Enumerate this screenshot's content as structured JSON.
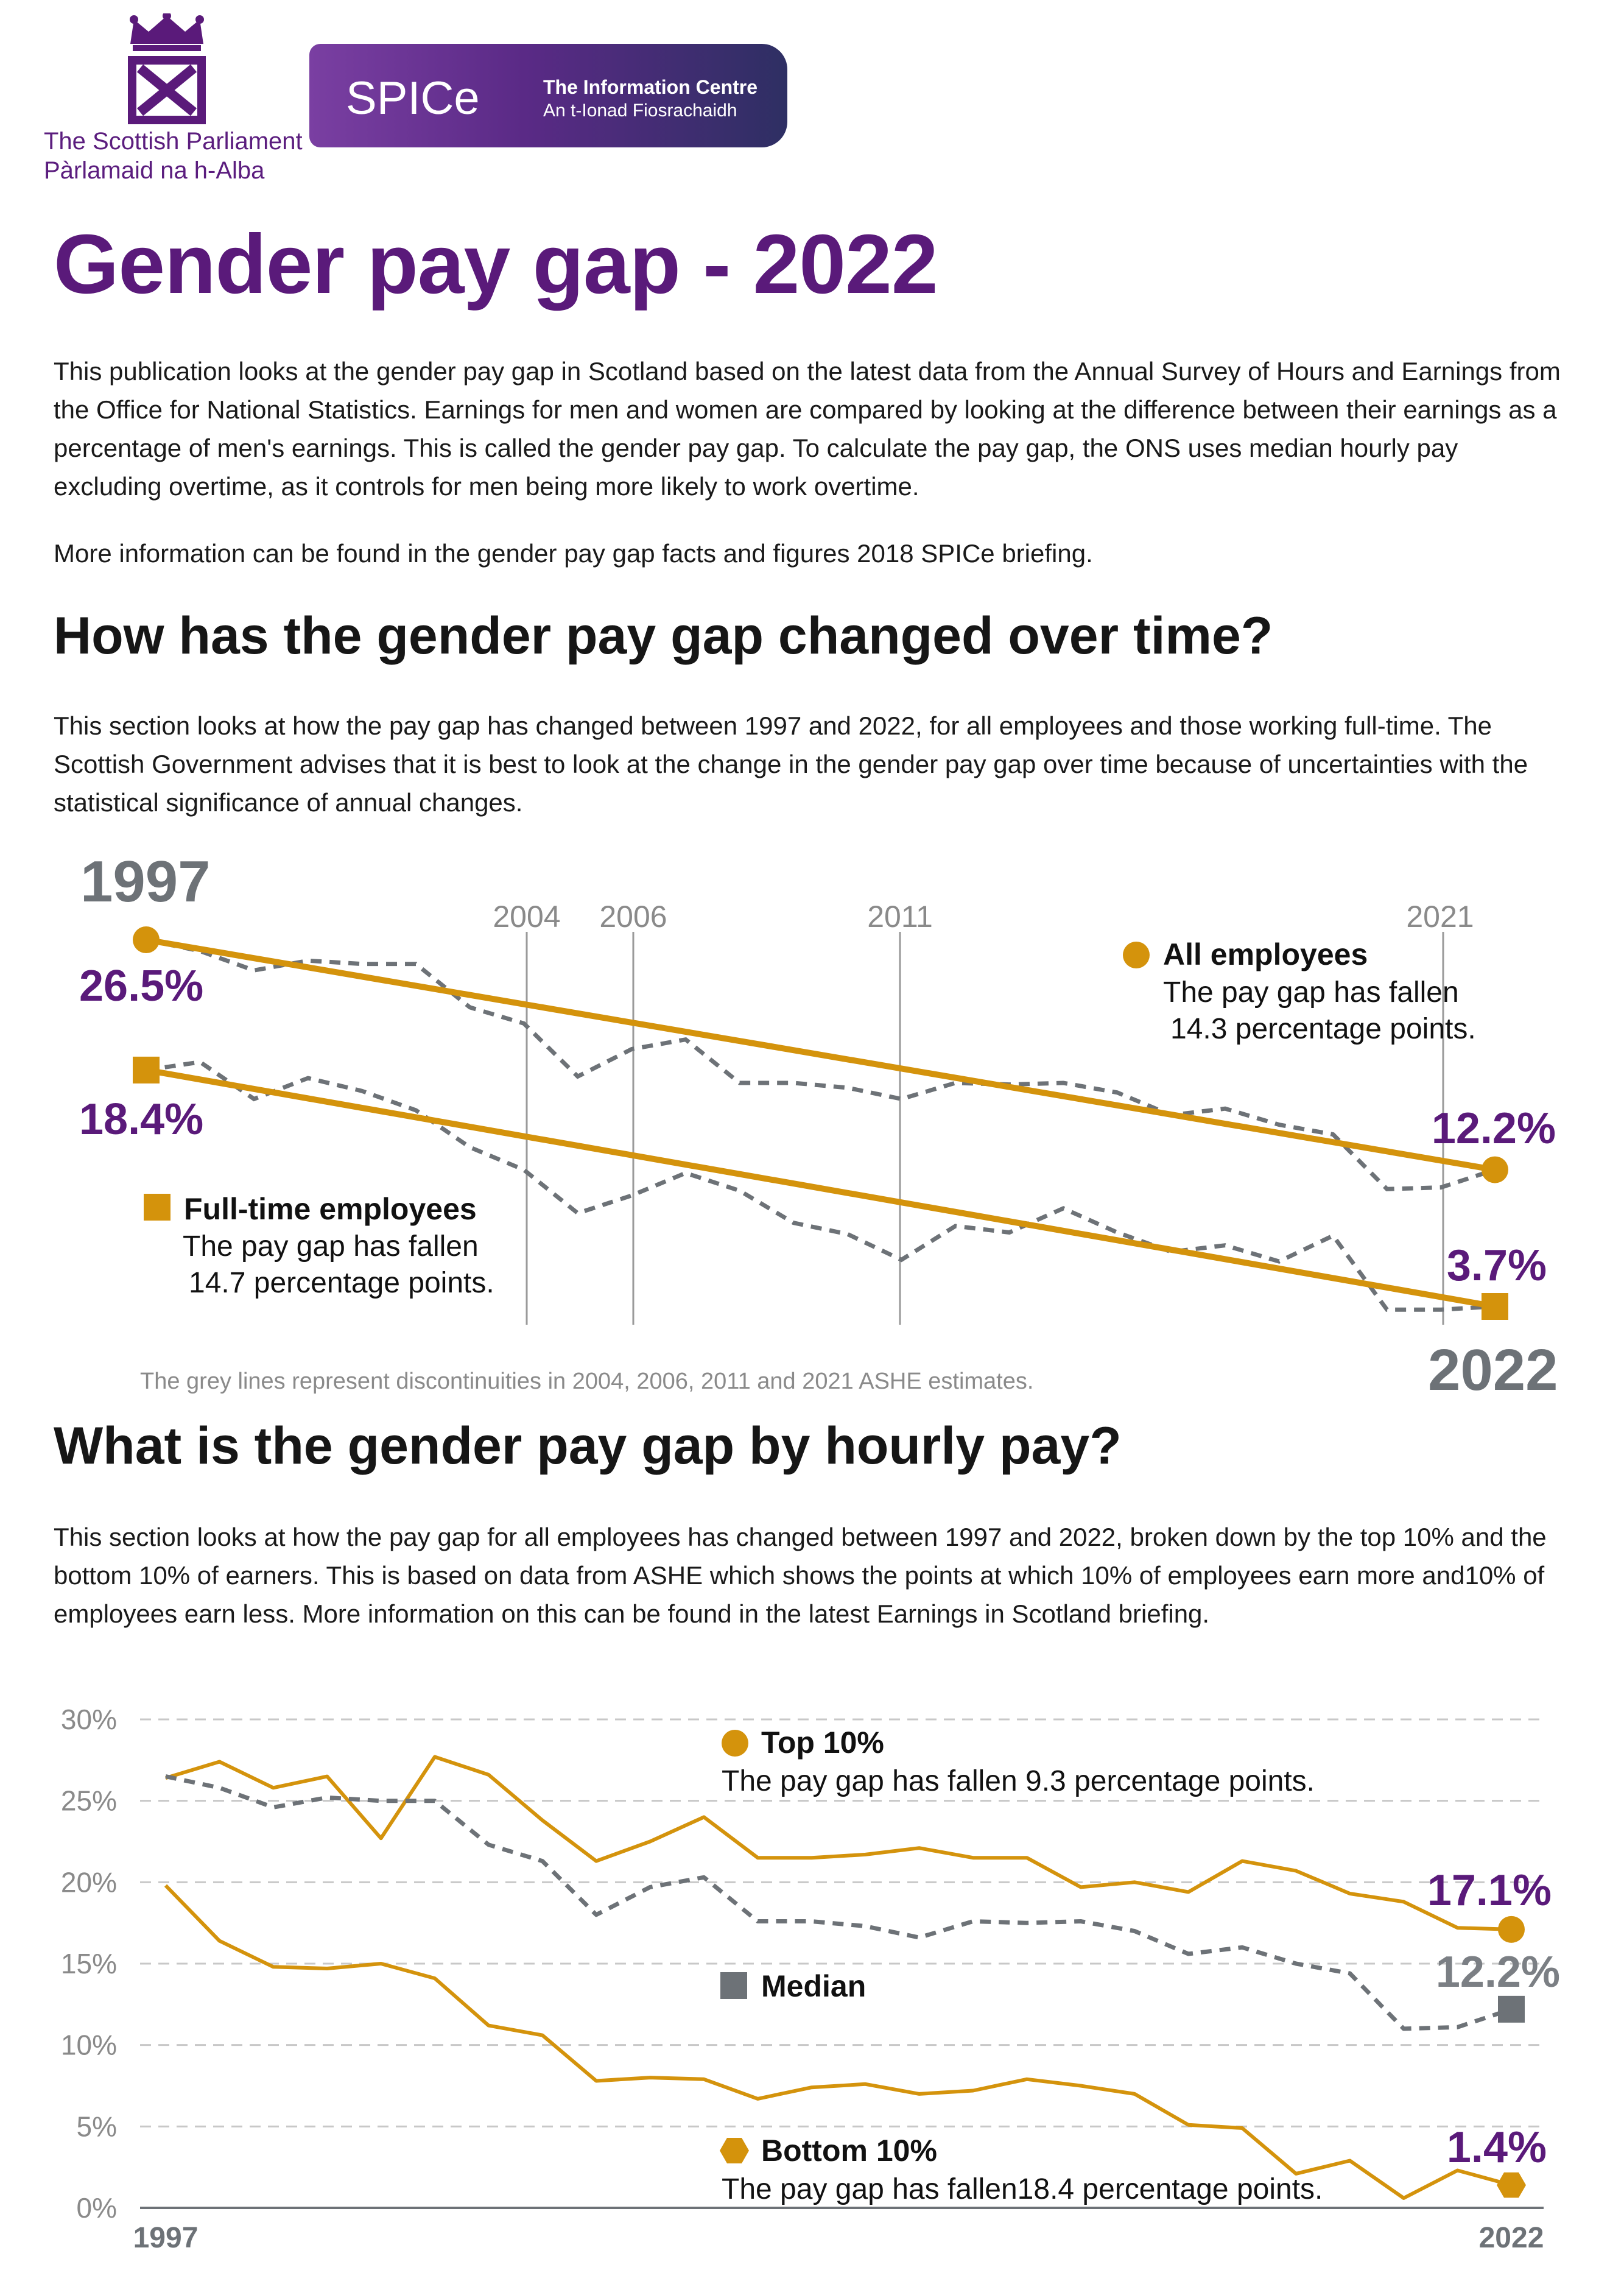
{
  "header": {
    "parliament_en": "The Scottish Parliament",
    "parliament_gd": "Pàrlamaid na h-Alba",
    "spice_word": "SPICe",
    "spice_title": "The Information Centre",
    "spice_subtitle": "An t-Ionad Fiosrachaidh"
  },
  "title": "Gender pay gap - 2022",
  "intro": "This publication looks at the gender pay gap in Scotland based on the latest data from the Annual Survey of Hours and Earnings from the Office for National Statistics. Earnings for men and women are compared by looking at the difference between their earnings as a percentage of men's earnings. This is called the gender pay gap. To calculate the pay gap, the ONS uses median hourly pay excluding overtime, as it controls for men being more likely to work overtime.",
  "more_info": "More information can be found in the gender pay gap facts and figures 2018 SPICe briefing.",
  "section1": {
    "heading": "How has the gender pay gap changed over time?",
    "description": "This section looks at how the pay gap has changed between 1997 and 2022, for all employees and those working full-time. The Scottish Government advises that it is best to look at the change in the gender pay gap over time because of uncertainties with the statistical significance of annual changes."
  },
  "section2": {
    "heading": "What is the gender pay gap by hourly pay?",
    "description": "This section looks at how the pay gap for all employees has changed between 1997 and 2022, broken down by the top 10% and the bottom 10% of earners. This is based on data from ASHE which shows the points at which 10% of employees earn more and10% of employees earn less. More information on this can be found in the latest Earnings in Scotland briefing."
  },
  "colors": {
    "purple": "#5a1a7a",
    "gold": "#d4930c",
    "grey": "#6d7277",
    "grid": "#c8c8c8"
  },
  "chart_data": [
    {
      "type": "line",
      "title": "How has the gender pay gap changed over time?",
      "start_year_label": "1997",
      "end_year_label": "2022",
      "x": [
        1997,
        1998,
        1999,
        2000,
        2001,
        2002,
        2003,
        2004,
        2005,
        2006,
        2007,
        2008,
        2009,
        2010,
        2011,
        2012,
        2013,
        2014,
        2015,
        2016,
        2017,
        2018,
        2019,
        2020,
        2021,
        2022
      ],
      "ylim": [
        0,
        30
      ],
      "discontinuity_years": [
        "2004",
        "2006",
        "2011",
        "2021"
      ],
      "footnote": "The grey lines represent discontinuities in 2004, 2006, 2011 and 2021 ASHE estimates.",
      "series": [
        {
          "name": "All employees",
          "marker": "circle",
          "start_label": "26.5%",
          "end_label": "12.2%",
          "note_line1": "The pay gap has fallen",
          "note_line2": "14.3 percentage points.",
          "values": [
            26.5,
            25.8,
            24.6,
            25.2,
            25.0,
            25.0,
            22.3,
            21.3,
            18.0,
            19.7,
            20.3,
            17.6,
            17.6,
            17.3,
            16.6,
            17.6,
            17.5,
            17.6,
            17.0,
            15.6,
            16.0,
            15.0,
            14.4,
            11.0,
            11.1,
            12.2
          ],
          "trend": [
            26.5,
            12.2
          ]
        },
        {
          "name": "Full-time employees",
          "marker": "square",
          "start_label": "18.4%",
          "end_label": "3.7%",
          "note_line1": "The pay gap has fallen",
          "note_line2": "14.7 percentage points.",
          "values": [
            18.4,
            18.9,
            16.6,
            17.9,
            17.1,
            15.9,
            13.6,
            12.2,
            9.5,
            10.6,
            12.0,
            10.9,
            8.9,
            8.2,
            6.6,
            8.7,
            8.3,
            9.8,
            8.3,
            7.1,
            7.5,
            6.5,
            8.1,
            3.5,
            3.5,
            3.7
          ],
          "trend": [
            18.4,
            3.7
          ]
        }
      ]
    },
    {
      "type": "line",
      "title": "What is the gender pay gap by hourly pay?",
      "x": [
        1997,
        1998,
        1999,
        2000,
        2001,
        2002,
        2003,
        2004,
        2005,
        2006,
        2007,
        2008,
        2009,
        2010,
        2011,
        2012,
        2013,
        2014,
        2015,
        2016,
        2017,
        2018,
        2019,
        2020,
        2021,
        2022
      ],
      "x_tick_labels": [
        "1997",
        "2022"
      ],
      "y_ticks": [
        0,
        5,
        10,
        15,
        20,
        25,
        30
      ],
      "y_tick_labels": [
        "0%",
        "5%",
        "10%",
        "15%",
        "20%",
        "25%",
        "30%"
      ],
      "ylim": [
        0,
        30
      ],
      "grid": true,
      "series": [
        {
          "name": "Top 10%",
          "marker": "circle",
          "end_label": "17.1%",
          "note": "The pay gap has fallen 9.3 percentage points.",
          "values": [
            26.4,
            27.4,
            25.8,
            26.5,
            22.7,
            27.7,
            26.6,
            23.8,
            21.3,
            22.5,
            24.0,
            21.5,
            21.5,
            21.7,
            22.1,
            21.5,
            21.5,
            19.7,
            20.0,
            19.4,
            21.3,
            20.7,
            19.3,
            18.8,
            17.2,
            17.1
          ]
        },
        {
          "name": "Median",
          "marker": "square",
          "end_label": "12.2%",
          "values": [
            26.5,
            25.8,
            24.6,
            25.2,
            25.0,
            25.0,
            22.3,
            21.3,
            18.0,
            19.7,
            20.3,
            17.6,
            17.6,
            17.3,
            16.6,
            17.6,
            17.5,
            17.6,
            17.0,
            15.6,
            16.0,
            15.0,
            14.4,
            11.0,
            11.1,
            12.2
          ]
        },
        {
          "name": "Bottom 10%",
          "marker": "hexagon",
          "end_label": "1.4%",
          "note": "The pay gap has fallen18.4 percentage points.",
          "values": [
            19.8,
            16.4,
            14.8,
            14.7,
            15.0,
            14.1,
            11.2,
            10.6,
            7.8,
            8.0,
            7.9,
            6.7,
            7.4,
            7.6,
            7.0,
            7.2,
            7.9,
            7.5,
            7.0,
            5.1,
            4.9,
            2.1,
            2.9,
            0.6,
            2.3,
            1.4
          ]
        }
      ]
    }
  ]
}
